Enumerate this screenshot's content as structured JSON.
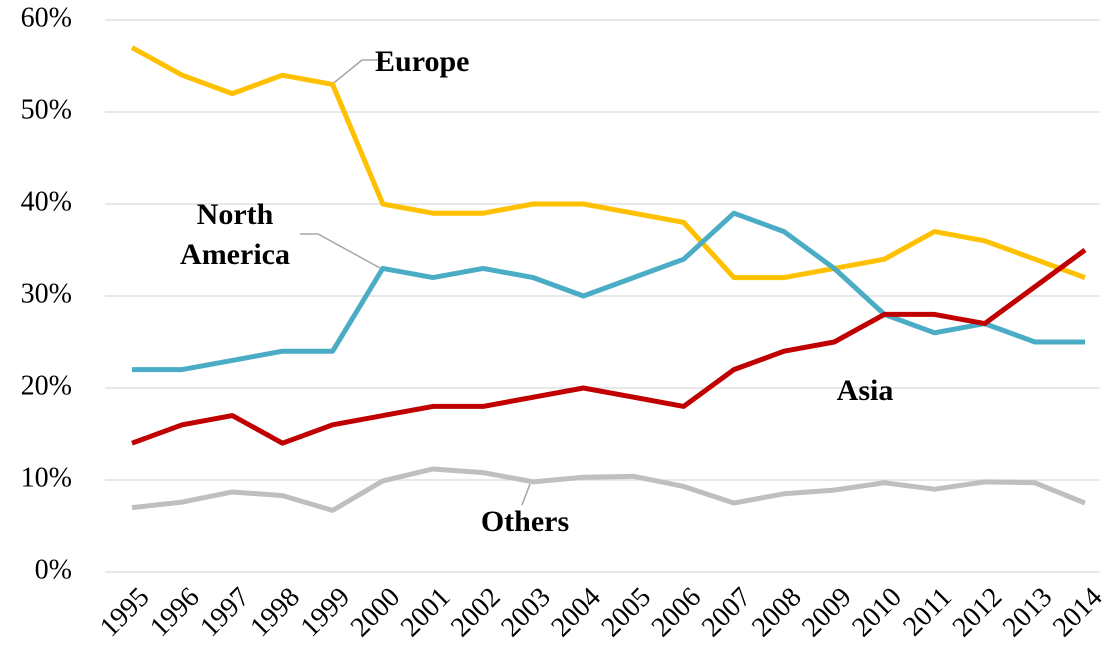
{
  "chart_data": {
    "type": "line",
    "categories": [
      "1995",
      "1996",
      "1997",
      "1998",
      "1999",
      "2000",
      "2001",
      "2002",
      "2003",
      "2004",
      "2005",
      "2006",
      "2007",
      "2008",
      "2009",
      "2010",
      "2011",
      "2012",
      "2013",
      "2014"
    ],
    "series": [
      {
        "name": "Europe",
        "color": "#FFC000",
        "values": [
          57,
          54,
          52,
          54,
          53,
          40,
          39,
          39,
          40,
          40,
          39,
          38,
          32,
          32,
          33,
          34,
          37,
          36,
          34,
          32
        ]
      },
      {
        "name": "North America",
        "color": "#4BACC6",
        "values": [
          22,
          22,
          23,
          24,
          24,
          33,
          32,
          33,
          32,
          30,
          32,
          34,
          39,
          37,
          33,
          28,
          26,
          27,
          25,
          25
        ]
      },
      {
        "name": "Asia",
        "color": "#C00000",
        "values": [
          14,
          16,
          17,
          14,
          16,
          17,
          18,
          18,
          19,
          20,
          19,
          18,
          22,
          24,
          25,
          28,
          28,
          27,
          31,
          35
        ]
      },
      {
        "name": "Others",
        "color": "#BFBFBF",
        "values": [
          7.0,
          7.6,
          8.7,
          8.3,
          6.7,
          9.9,
          11.2,
          10.8,
          9.8,
          10.3,
          10.4,
          9.3,
          7.5,
          8.5,
          8.9,
          9.7,
          9.0,
          9.8,
          9.7,
          7.5
        ]
      }
    ],
    "ylim": [
      0,
      60
    ],
    "yticks": [
      {
        "value": 0,
        "label": "0%"
      },
      {
        "value": 10,
        "label": "10%"
      },
      {
        "value": 20,
        "label": "20%"
      },
      {
        "value": 30,
        "label": "30%"
      },
      {
        "value": 40,
        "label": "40%"
      },
      {
        "value": 50,
        "label": "50%"
      },
      {
        "value": 60,
        "label": "60%"
      }
    ],
    "grid": true
  }
}
